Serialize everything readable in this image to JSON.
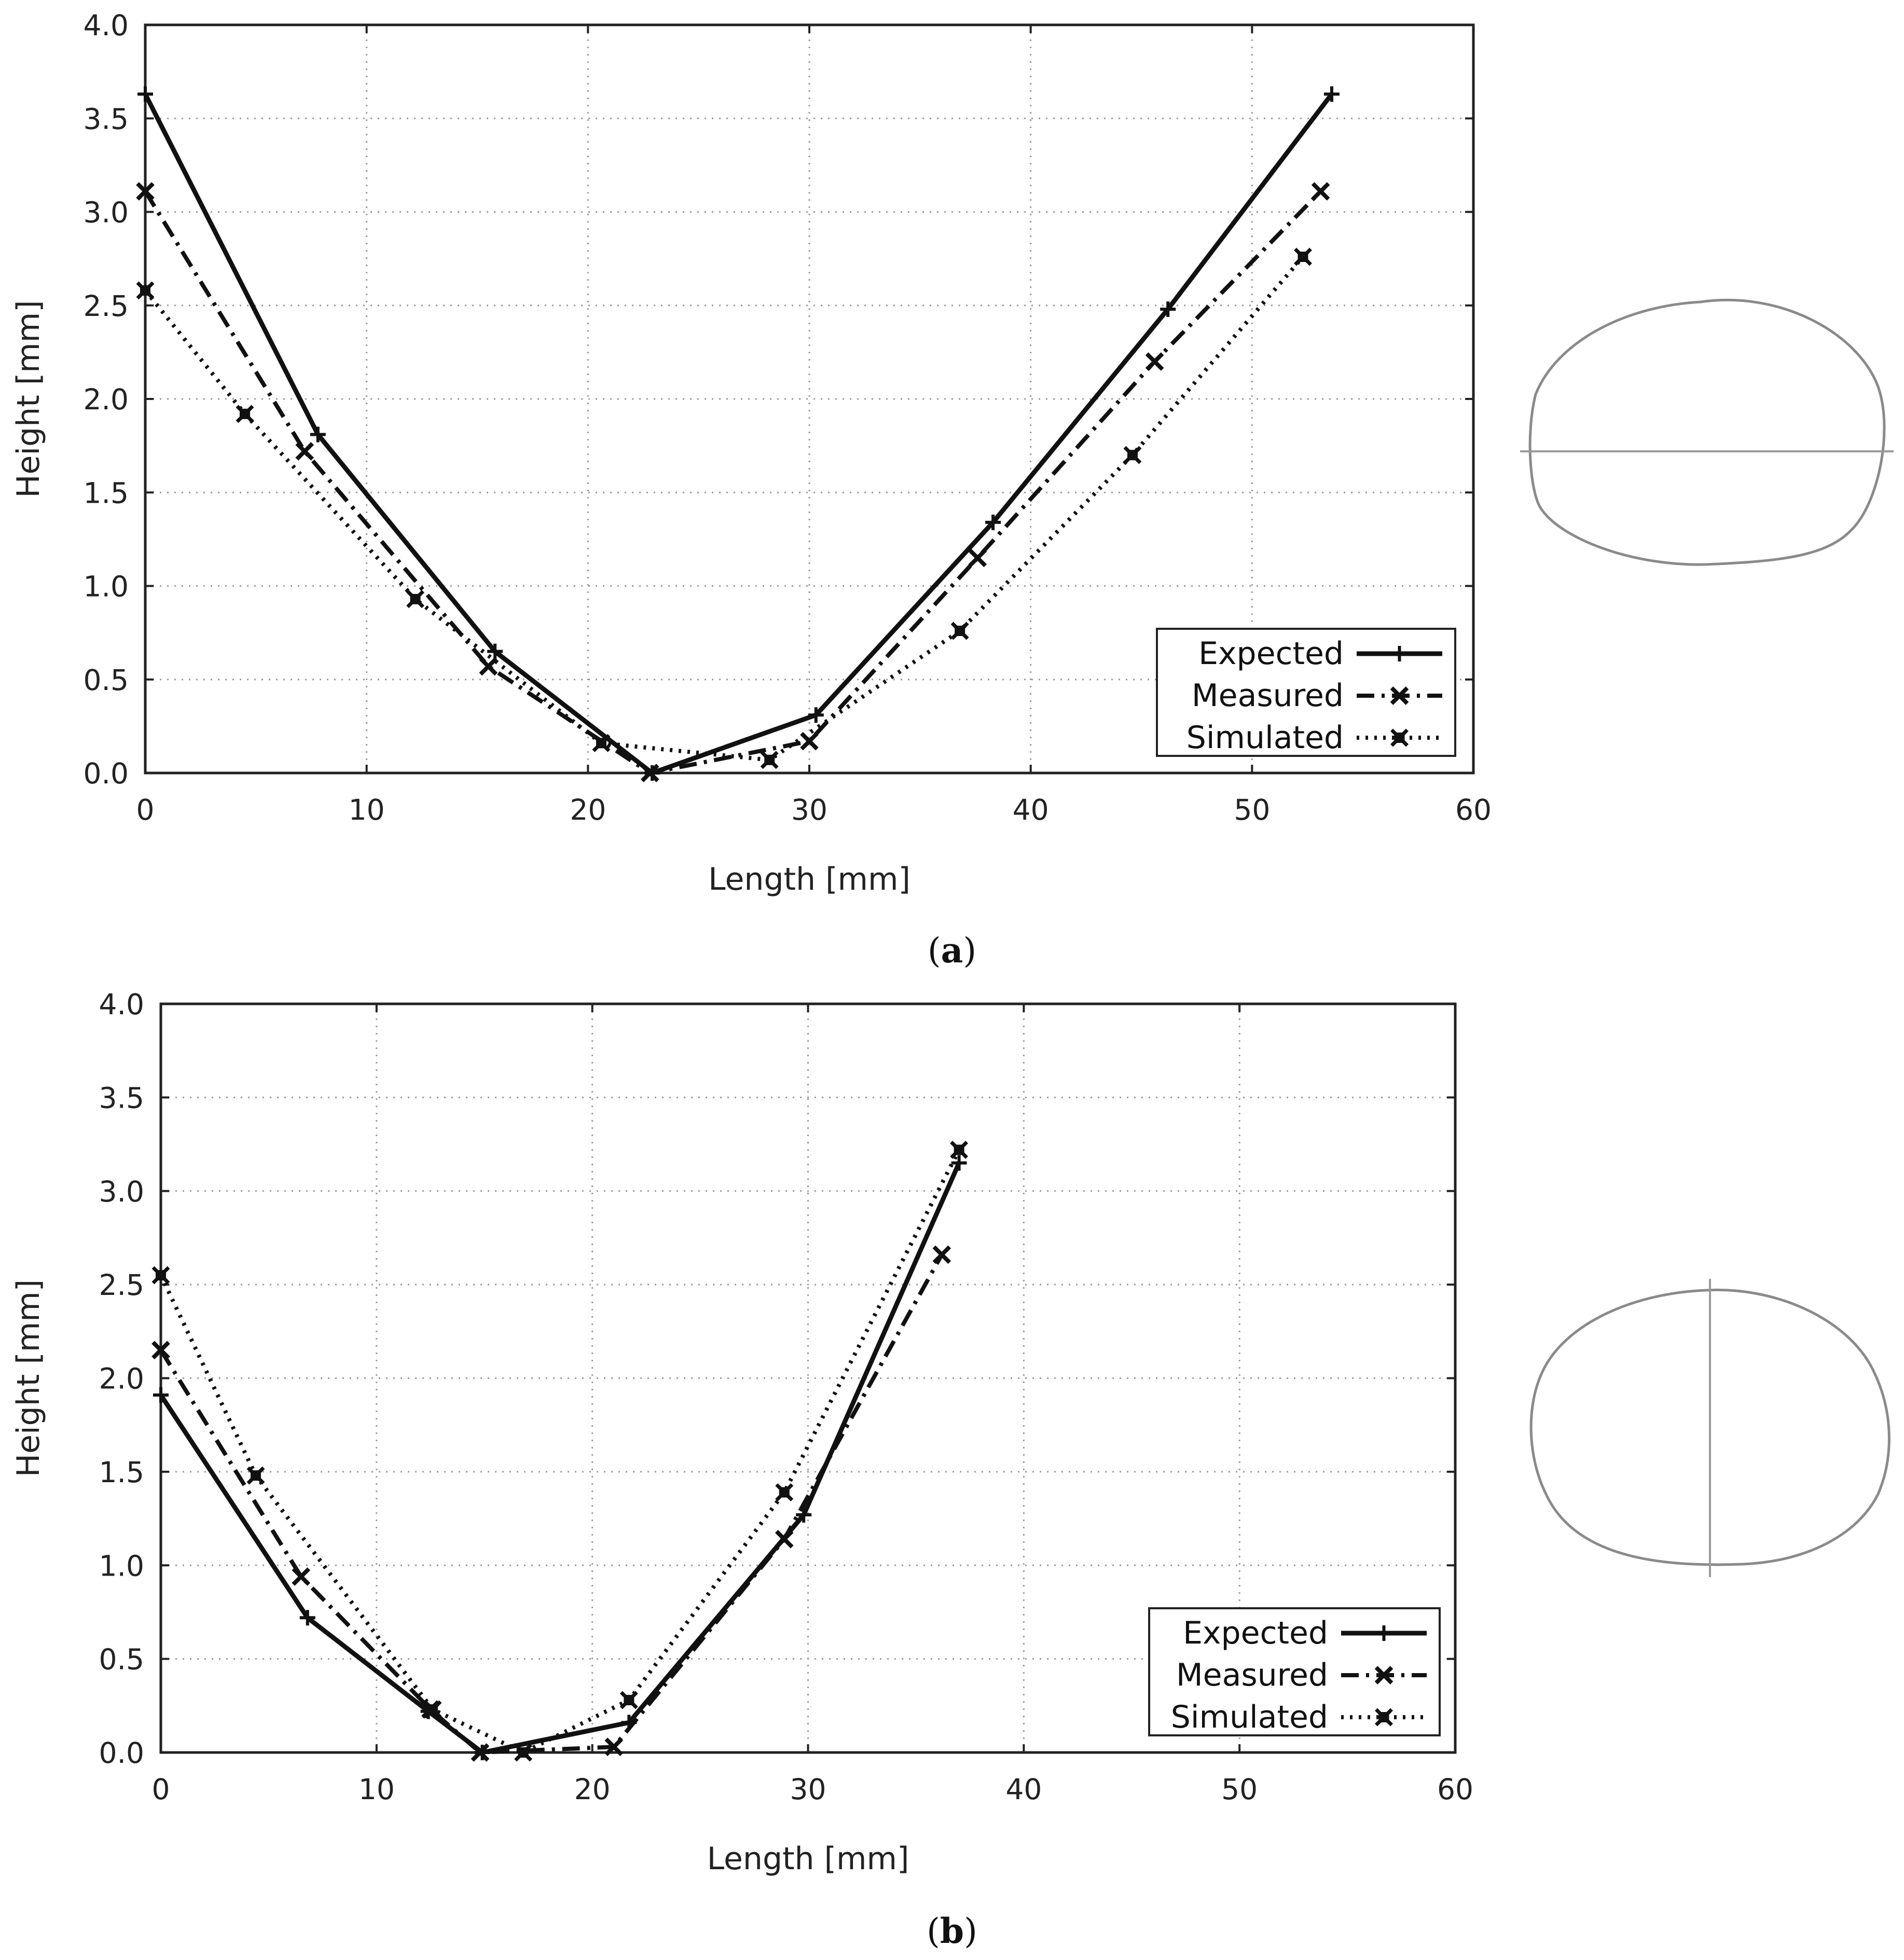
{
  "chart_data": [
    {
      "type": "line",
      "panel": "a",
      "caption_letter": "a",
      "xlabel": "Length [mm]",
      "ylabel": "Height [mm]",
      "xlim": [
        0,
        60
      ],
      "ylim": [
        0,
        4.0
      ],
      "xticks": [
        "0",
        "10",
        "20",
        "30",
        "40",
        "50",
        "60"
      ],
      "yticks": [
        "0.0",
        "0.5",
        "1.0",
        "1.5",
        "2.0",
        "2.5",
        "3.0",
        "3.5",
        "4.0"
      ],
      "grid": true,
      "legend_position": "bottom-right",
      "series": [
        {
          "name": "Expected",
          "style": "solid",
          "marker": "plus",
          "points": [
            [
              0,
              3.63
            ],
            [
              7.8,
              1.81
            ],
            [
              15.8,
              0.65
            ],
            [
              22.9,
              0.0
            ],
            [
              30.3,
              0.31
            ],
            [
              38.3,
              1.34
            ],
            [
              46.2,
              2.48
            ],
            [
              53.6,
              3.63
            ]
          ]
        },
        {
          "name": "Measured",
          "style": "dashdot",
          "marker": "x",
          "points": [
            [
              0,
              3.11
            ],
            [
              7.2,
              1.72
            ],
            [
              15.5,
              0.57
            ],
            [
              22.8,
              0.0
            ],
            [
              30.0,
              0.17
            ],
            [
              37.6,
              1.15
            ],
            [
              45.6,
              2.2
            ],
            [
              53.1,
              3.11
            ]
          ]
        },
        {
          "name": "Simulated",
          "style": "dotted",
          "marker": "filled-x",
          "points": [
            [
              0,
              2.58
            ],
            [
              4.5,
              1.92
            ],
            [
              12.2,
              0.93
            ],
            [
              20.6,
              0.16
            ],
            [
              28.2,
              0.07
            ],
            [
              36.8,
              0.76
            ],
            [
              44.6,
              1.7
            ],
            [
              52.3,
              2.76
            ]
          ]
        }
      ]
    },
    {
      "type": "line",
      "panel": "b",
      "caption_letter": "b",
      "xlabel": "Length [mm]",
      "ylabel": "Height [mm]",
      "xlim": [
        0,
        60
      ],
      "ylim": [
        0,
        4.0
      ],
      "xticks": [
        "0",
        "10",
        "20",
        "30",
        "40",
        "50",
        "60"
      ],
      "yticks": [
        "0.0",
        "0.5",
        "1.0",
        "1.5",
        "2.0",
        "2.5",
        "3.0",
        "3.5",
        "4.0"
      ],
      "grid": true,
      "legend_position": "bottom-right",
      "series": [
        {
          "name": "Expected",
          "style": "solid",
          "marker": "plus",
          "points": [
            [
              0,
              1.91
            ],
            [
              6.8,
              0.72
            ],
            [
              12.4,
              0.22
            ],
            [
              14.9,
              0.0
            ],
            [
              21.7,
              0.16
            ],
            [
              29.8,
              1.27
            ],
            [
              37.0,
              3.15
            ]
          ]
        },
        {
          "name": "Measured",
          "style": "dashdot",
          "marker": "x",
          "points": [
            [
              0,
              2.15
            ],
            [
              6.5,
              0.94
            ],
            [
              12.5,
              0.23
            ],
            [
              14.8,
              0.0
            ],
            [
              21.0,
              0.03
            ],
            [
              28.9,
              1.14
            ],
            [
              36.2,
              2.66
            ]
          ]
        },
        {
          "name": "Simulated",
          "style": "dotted",
          "marker": "filled-x",
          "points": [
            [
              0,
              2.55
            ],
            [
              4.4,
              1.48
            ],
            [
              12.6,
              0.23
            ],
            [
              16.8,
              0.0
            ],
            [
              21.7,
              0.28
            ],
            [
              28.9,
              1.39
            ],
            [
              37.0,
              3.22
            ]
          ]
        }
      ]
    }
  ]
}
